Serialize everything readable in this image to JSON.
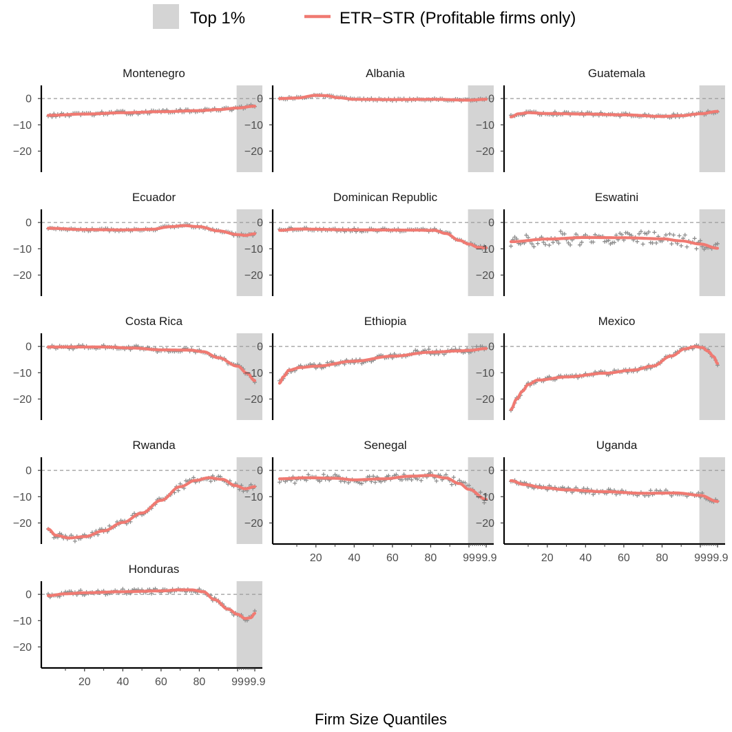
{
  "legend": {
    "shade_label": "Top 1%",
    "line_label": "ETR−STR (Profitable firms only)"
  },
  "colors": {
    "line": "#F07A72",
    "points": "#8C8C8C",
    "shade": "#D4D4D4",
    "zero_line": "#9A9A9A",
    "axis": "#000000",
    "tick_text": "#4D4D4D"
  },
  "chart_data": {
    "type": "line",
    "xlabel": "Firm Size Quantiles",
    "ylabel": "",
    "ylim": [
      -28,
      5
    ],
    "x_tick_labels": [
      "20",
      "40",
      "60",
      "80",
      "99",
      "99.9"
    ],
    "y_tick_labels": [
      "0",
      "−10",
      "−20"
    ],
    "y_ticks": [
      0,
      -10,
      -20
    ],
    "shaded_region": "Top 1%",
    "reference_line": 0,
    "series_note": "x positions: 1..100 are quantiles 1-99 percentiles, 101-109 are 99.1-99.9 within the top 1%",
    "panels": [
      {
        "name": "Montenegro",
        "curve": [
          [
            1,
            -6.4
          ],
          [
            20,
            -5.9
          ],
          [
            40,
            -5.4
          ],
          [
            60,
            -5.0
          ],
          [
            80,
            -4.6
          ],
          [
            90,
            -4.2
          ],
          [
            100,
            -3.6
          ],
          [
            109,
            -2.9
          ]
        ],
        "noise": 0.6
      },
      {
        "name": "Albania",
        "curve": [
          [
            1,
            0.0
          ],
          [
            10,
            0.2
          ],
          [
            20,
            1.2
          ],
          [
            25,
            1.1
          ],
          [
            32,
            0.3
          ],
          [
            40,
            -0.3
          ],
          [
            60,
            -0.4
          ],
          [
            80,
            -0.3
          ],
          [
            100,
            -0.6
          ],
          [
            109,
            -0.3
          ]
        ],
        "noise": 0.4
      },
      {
        "name": "Guatemala",
        "curve": [
          [
            1,
            -7.0
          ],
          [
            5,
            -5.8
          ],
          [
            10,
            -5.4
          ],
          [
            20,
            -5.7
          ],
          [
            40,
            -5.9
          ],
          [
            60,
            -6.2
          ],
          [
            80,
            -6.8
          ],
          [
            90,
            -6.5
          ],
          [
            100,
            -5.8
          ],
          [
            109,
            -4.9
          ]
        ],
        "noise": 0.6
      },
      {
        "name": "Ecuador",
        "curve": [
          [
            1,
            -2.2
          ],
          [
            20,
            -2.7
          ],
          [
            40,
            -2.8
          ],
          [
            55,
            -2.6
          ],
          [
            65,
            -1.6
          ],
          [
            72,
            -1.2
          ],
          [
            80,
            -1.6
          ],
          [
            90,
            -3.2
          ],
          [
            100,
            -4.6
          ],
          [
            104,
            -4.9
          ],
          [
            109,
            -4.3
          ]
        ],
        "noise": 0.5
      },
      {
        "name": "Dominican Republic",
        "curve": [
          [
            1,
            -3.0
          ],
          [
            10,
            -2.5
          ],
          [
            40,
            -2.8
          ],
          [
            70,
            -2.9
          ],
          [
            82,
            -3.0
          ],
          [
            88,
            -4.2
          ],
          [
            95,
            -6.8
          ],
          [
            100,
            -8.2
          ],
          [
            105,
            -9.5
          ],
          [
            109,
            -9.6
          ]
        ],
        "noise": 0.6
      },
      {
        "name": "Eswatini",
        "curve": [
          [
            1,
            -7.3
          ],
          [
            20,
            -6.3
          ],
          [
            40,
            -5.7
          ],
          [
            60,
            -5.8
          ],
          [
            80,
            -6.2
          ],
          [
            90,
            -7.0
          ],
          [
            100,
            -8.2
          ],
          [
            109,
            -9.8
          ]
        ],
        "noise": 2.4
      },
      {
        "name": "Costa Rica",
        "curve": [
          [
            1,
            -0.2
          ],
          [
            30,
            -0.2
          ],
          [
            45,
            -0.6
          ],
          [
            60,
            -1.3
          ],
          [
            75,
            -1.4
          ],
          [
            82,
            -2.0
          ],
          [
            90,
            -4.3
          ],
          [
            100,
            -7.5
          ],
          [
            105,
            -10.2
          ],
          [
            109,
            -13.0
          ]
        ],
        "noise": 0.7
      },
      {
        "name": "Ethiopia",
        "curve": [
          [
            1,
            -14.0
          ],
          [
            3,
            -11.5
          ],
          [
            6,
            -9.0
          ],
          [
            12,
            -8.0
          ],
          [
            20,
            -7.5
          ],
          [
            40,
            -5.6
          ],
          [
            60,
            -3.7
          ],
          [
            80,
            -2.2
          ],
          [
            95,
            -1.7
          ],
          [
            100,
            -1.5
          ],
          [
            109,
            -0.8
          ]
        ],
        "noise": 1.0
      },
      {
        "name": "Mexico",
        "curve": [
          [
            1,
            -24.0
          ],
          [
            4,
            -20.0
          ],
          [
            7,
            -17.0
          ],
          [
            10,
            -14.5
          ],
          [
            15,
            -12.8
          ],
          [
            30,
            -11.6
          ],
          [
            50,
            -10.2
          ],
          [
            65,
            -9.0
          ],
          [
            75,
            -7.5
          ],
          [
            85,
            -3.6
          ],
          [
            92,
            -0.9
          ],
          [
            97,
            -0.1
          ],
          [
            101,
            -0.4
          ],
          [
            104,
            -1.8
          ],
          [
            107,
            -3.9
          ],
          [
            109,
            -6.5
          ]
        ],
        "noise": 0.7
      },
      {
        "name": "Rwanda",
        "curve": [
          [
            1,
            -22.3
          ],
          [
            5,
            -24.7
          ],
          [
            12,
            -25.7
          ],
          [
            20,
            -25.2
          ],
          [
            30,
            -23.0
          ],
          [
            40,
            -19.8
          ],
          [
            50,
            -16.2
          ],
          [
            60,
            -11.4
          ],
          [
            70,
            -6.2
          ],
          [
            78,
            -3.8
          ],
          [
            85,
            -2.8
          ],
          [
            92,
            -3.4
          ],
          [
            99,
            -5.8
          ],
          [
            104,
            -7.0
          ],
          [
            109,
            -6.2
          ]
        ],
        "noise": 1.2
      },
      {
        "name": "Senegal",
        "curve": [
          [
            1,
            -3.2
          ],
          [
            15,
            -2.8
          ],
          [
            30,
            -3.0
          ],
          [
            40,
            -3.6
          ],
          [
            55,
            -3.2
          ],
          [
            70,
            -2.2
          ],
          [
            80,
            -1.9
          ],
          [
            88,
            -2.9
          ],
          [
            95,
            -5.0
          ],
          [
            100,
            -7.2
          ],
          [
            109,
            -11.0
          ]
        ],
        "noise": 1.5
      },
      {
        "name": "Uganda",
        "curve": [
          [
            1,
            -3.9
          ],
          [
            8,
            -5.4
          ],
          [
            18,
            -6.6
          ],
          [
            30,
            -7.4
          ],
          [
            50,
            -8.1
          ],
          [
            70,
            -8.7
          ],
          [
            88,
            -8.6
          ],
          [
            100,
            -9.5
          ],
          [
            109,
            -11.8
          ]
        ],
        "noise": 1.0
      },
      {
        "name": "Honduras",
        "curve": [
          [
            1,
            -0.5
          ],
          [
            10,
            0.2
          ],
          [
            20,
            0.6
          ],
          [
            40,
            1.0
          ],
          [
            60,
            1.3
          ],
          [
            70,
            1.7
          ],
          [
            76,
            1.7
          ],
          [
            82,
            1.0
          ],
          [
            88,
            -2.0
          ],
          [
            95,
            -5.6
          ],
          [
            100,
            -7.6
          ],
          [
            104,
            -9.2
          ],
          [
            107,
            -8.9
          ],
          [
            109,
            -7.2
          ]
        ],
        "noise": 0.8
      }
    ]
  }
}
